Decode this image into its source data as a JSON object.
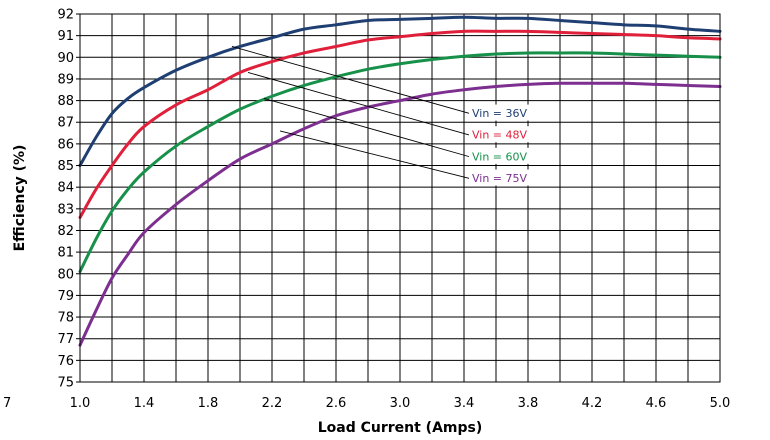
{
  "chart_data": {
    "type": "line",
    "xlabel": "Load Current (Amps)",
    "ylabel": "Efficiency (%)",
    "xlim": [
      1.0,
      5.0
    ],
    "ylim": [
      75,
      92
    ],
    "x_tick_labels": [
      "1.0",
      "1.4",
      "1.8",
      "2.2",
      "2.6",
      "3.0",
      "3.4",
      "3.8",
      "4.2",
      "4.6",
      "5.0"
    ],
    "x_tick_values": [
      1.0,
      1.4,
      1.8,
      2.2,
      2.6,
      3.0,
      3.4,
      3.8,
      4.2,
      4.6,
      5.0
    ],
    "left_cut_label": "7",
    "x_grid_step": 0.2,
    "y_ticks": [
      75,
      76,
      77,
      78,
      79,
      80,
      81,
      82,
      83,
      84,
      85,
      86,
      87,
      88,
      89,
      90,
      91,
      92
    ],
    "grid": true,
    "series": [
      {
        "name": "Vin = 36V",
        "color": "#1f3f73",
        "x": [
          1.0,
          1.1,
          1.2,
          1.3,
          1.4,
          1.6,
          1.8,
          2.0,
          2.2,
          2.4,
          2.6,
          2.8,
          3.0,
          3.2,
          3.4,
          3.6,
          3.8,
          4.0,
          4.2,
          4.4,
          4.6,
          4.8,
          5.0
        ],
        "y": [
          85.0,
          86.3,
          87.4,
          88.1,
          88.6,
          89.4,
          90.0,
          90.5,
          90.9,
          91.3,
          91.5,
          91.7,
          91.75,
          91.8,
          91.85,
          91.8,
          91.8,
          91.7,
          91.6,
          91.5,
          91.45,
          91.3,
          91.2
        ]
      },
      {
        "name": "Vin = 48V",
        "color": "#e0203a",
        "x": [
          1.0,
          1.1,
          1.2,
          1.3,
          1.4,
          1.6,
          1.8,
          2.0,
          2.2,
          2.4,
          2.6,
          2.8,
          3.0,
          3.2,
          3.4,
          3.6,
          3.8,
          4.0,
          4.2,
          4.4,
          4.6,
          4.8,
          5.0
        ],
        "y": [
          82.6,
          83.9,
          85.0,
          86.0,
          86.8,
          87.8,
          88.5,
          89.3,
          89.8,
          90.2,
          90.5,
          90.8,
          90.95,
          91.1,
          91.2,
          91.2,
          91.2,
          91.15,
          91.1,
          91.05,
          91.0,
          90.9,
          90.85
        ]
      },
      {
        "name": "Vin = 60V",
        "color": "#17914a",
        "x": [
          1.0,
          1.1,
          1.2,
          1.3,
          1.4,
          1.6,
          1.8,
          2.0,
          2.2,
          2.4,
          2.6,
          2.8,
          3.0,
          3.2,
          3.4,
          3.6,
          3.8,
          4.0,
          4.2,
          4.4,
          4.6,
          4.8,
          5.0
        ],
        "y": [
          80.1,
          81.6,
          82.9,
          83.9,
          84.7,
          85.9,
          86.8,
          87.6,
          88.2,
          88.7,
          89.1,
          89.45,
          89.7,
          89.9,
          90.05,
          90.15,
          90.2,
          90.2,
          90.2,
          90.15,
          90.1,
          90.05,
          90.0
        ]
      },
      {
        "name": "Vin = 75V",
        "color": "#7c2f8f",
        "x": [
          1.0,
          1.1,
          1.2,
          1.3,
          1.4,
          1.6,
          1.8,
          2.0,
          2.2,
          2.4,
          2.6,
          2.8,
          3.0,
          3.2,
          3.4,
          3.6,
          3.8,
          4.0,
          4.2,
          4.4,
          4.6,
          4.8,
          5.0
        ],
        "y": [
          76.7,
          78.3,
          79.8,
          80.9,
          81.9,
          83.2,
          84.3,
          85.3,
          86.0,
          86.7,
          87.3,
          87.7,
          88.0,
          88.3,
          88.5,
          88.65,
          88.75,
          88.8,
          88.8,
          88.8,
          88.75,
          88.7,
          88.65
        ]
      }
    ],
    "annotations": [
      {
        "text": "Vin = 36V",
        "color": "#1f3f73",
        "target": [
          1.95,
          90.5
        ],
        "label_anchor": [
          3.45,
          87.4
        ]
      },
      {
        "text": "Vin = 48V",
        "color": "#e0203a",
        "target": [
          2.05,
          89.3
        ],
        "label_anchor": [
          3.45,
          86.4
        ]
      },
      {
        "text": "Vin = 60V",
        "color": "#17914a",
        "target": [
          2.15,
          88.1
        ],
        "label_anchor": [
          3.45,
          85.4
        ]
      },
      {
        "text": "Vin = 75V",
        "color": "#7c2f8f",
        "target": [
          2.25,
          86.6
        ],
        "label_anchor": [
          3.45,
          84.4
        ]
      }
    ]
  }
}
